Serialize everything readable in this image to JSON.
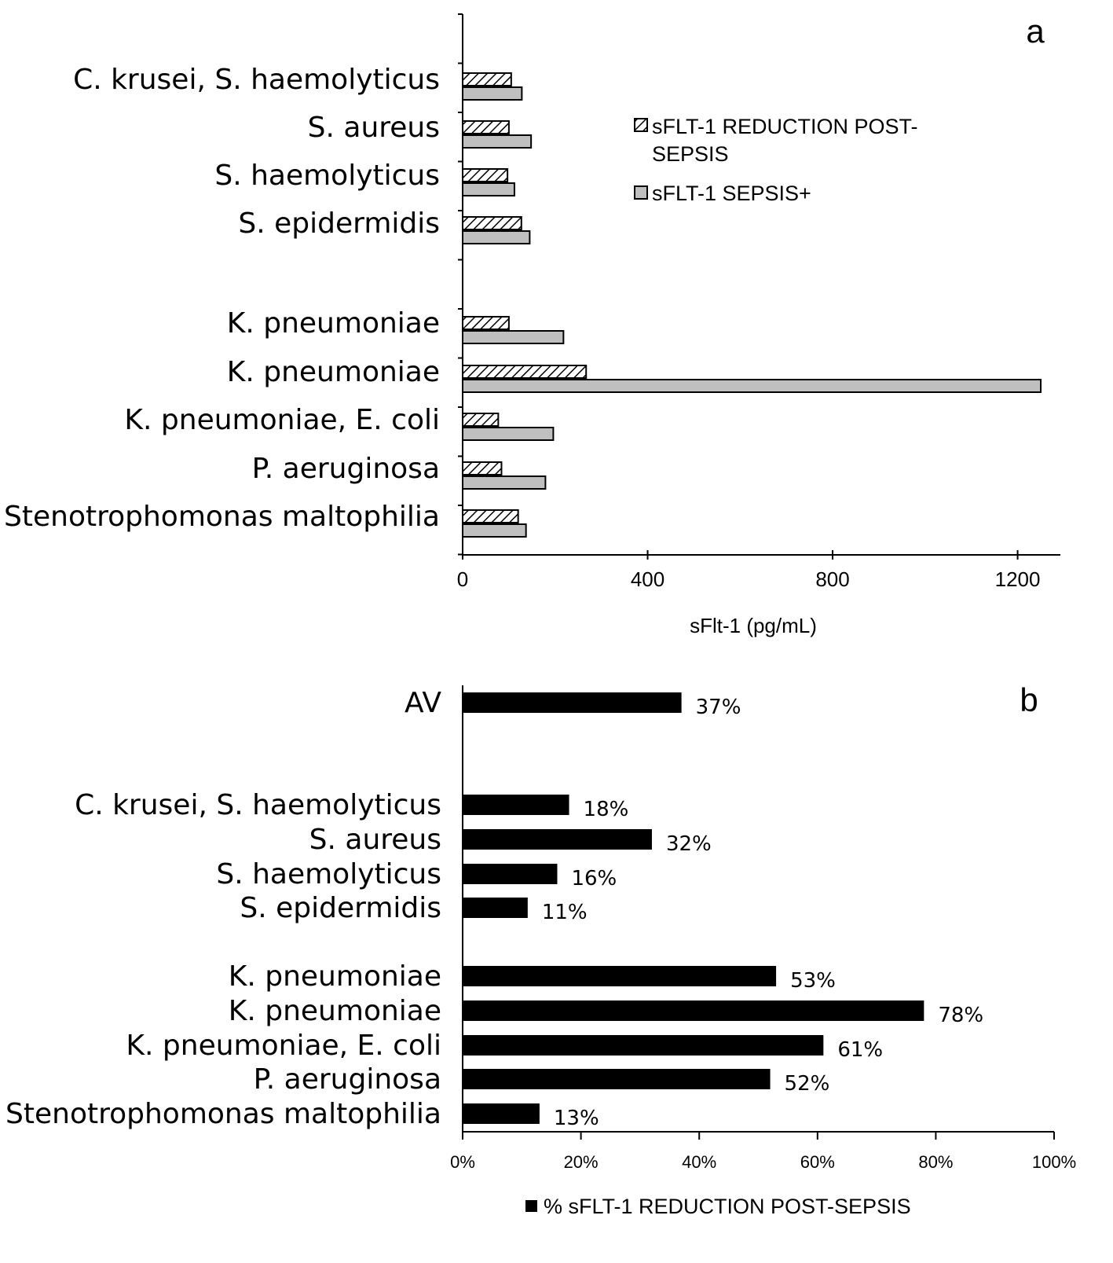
{
  "chart_data": [
    {
      "type": "bar",
      "orientation": "horizontal",
      "panel_label": "a",
      "categories": [
        "C. krusei, S. haemolyticus",
        "S. aureus",
        "S. haemolyticus",
        "S. epidermidis",
        "K. pneumoniae",
        "K. pneumoniae",
        "K. pneumoniae, E. coli",
        "P. aeruginosa",
        "Stenotrophomonas maltophilia"
      ],
      "series": [
        {
          "name": "sFLT-1 REDUCTION POST-SEPSIS",
          "legend_lines": [
            "sFLT-1 REDUCTION POST-",
            "SEPSIS"
          ],
          "pattern": "hatch",
          "color": "#ffffff",
          "values": [
            105,
            100,
            97,
            127,
            100,
            267,
            77,
            84,
            120
          ]
        },
        {
          "name": "sFLT-1 SEPSIS+",
          "legend_lines": [
            "sFLT-1 SEPSIS+"
          ],
          "pattern": "solid",
          "color": "#bfbfbf",
          "values": [
            128,
            148,
            112,
            145,
            218,
            1250,
            196,
            179,
            137
          ]
        }
      ],
      "xlabel": "sFlt-1 (pg/mL)",
      "xlim": [
        0,
        1250
      ],
      "xticks": [
        "0",
        "400",
        "800",
        "1200"
      ],
      "legend_position": "top-right",
      "grid": false
    },
    {
      "type": "bar",
      "orientation": "horizontal",
      "panel_label": "b",
      "categories": [
        "AV",
        "C. krusei, S. haemolyticus",
        "S. aureus",
        "S. haemolyticus",
        "S. epidermidis",
        "K. pneumoniae",
        "K. pneumoniae",
        "K. pneumoniae, E. coli",
        "P. aeruginosa",
        "Stenotrophomonas maltophilia"
      ],
      "series": [
        {
          "name": "% sFLT-1 REDUCTION POST-SEPSIS",
          "color": "#000000",
          "values": [
            37,
            18,
            32,
            16,
            11,
            53,
            78,
            61,
            52,
            13
          ]
        }
      ],
      "data_labels": [
        "37%",
        "18%",
        "32%",
        "16%",
        "11%",
        "53%",
        "78%",
        "61%",
        "52%",
        "13%"
      ],
      "xlim": [
        0,
        100
      ],
      "xticks": [
        "0%",
        "20%",
        "40%",
        "60%",
        "80%",
        "100%"
      ],
      "legend_position": "bottom",
      "grid": false
    }
  ]
}
